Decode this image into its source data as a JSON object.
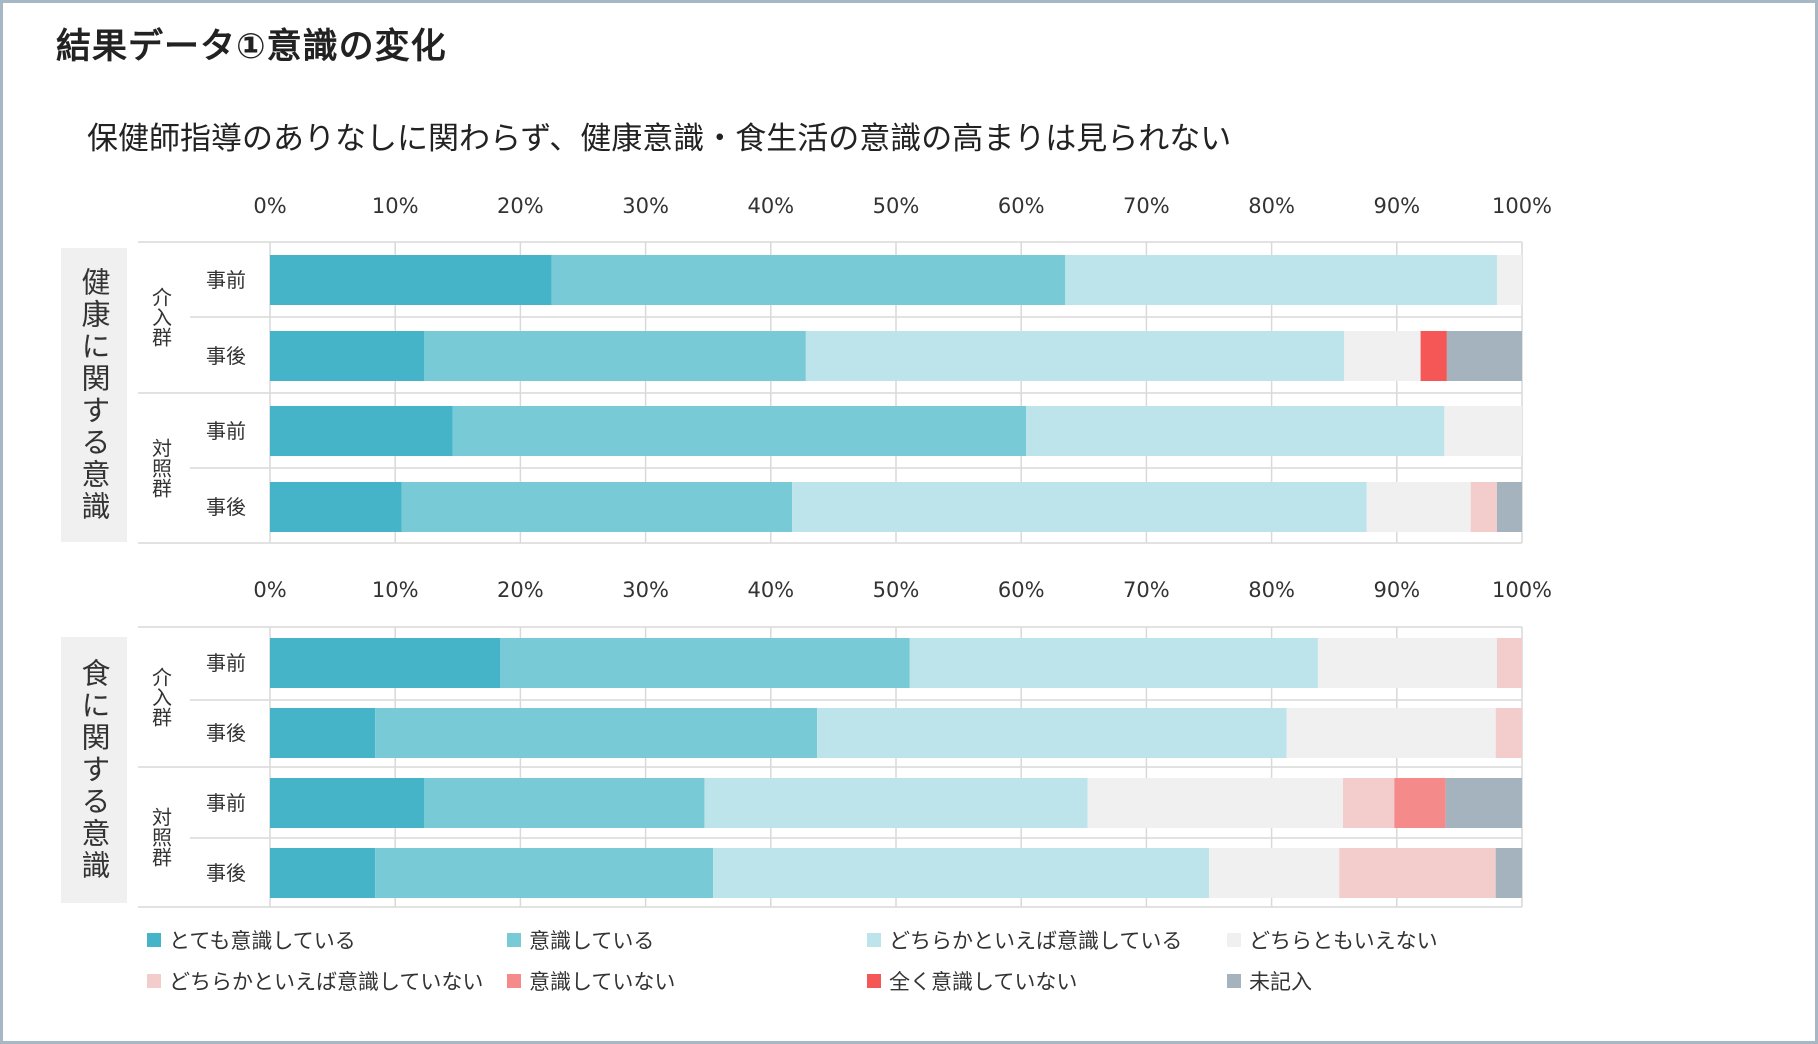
{
  "slide": {
    "title": "結果データ①意識の変化",
    "subtitle": "保健師指導のありなしに関わらず、健康意識・食生活の意識の高まりは見られない"
  },
  "categories_colors": [
    "#45b4c8",
    "#79cad7",
    "#bde4eb",
    "#f0f0f0",
    "#f3cccc",
    "#f58a8a",
    "#f55656",
    "#a4b3be"
  ],
  "chart_data": [
    {
      "type": "bar",
      "orientation": "horizontal-stacked-100",
      "panel_label": "健康に関する意識",
      "x_ticks": [
        "0%",
        "10%",
        "20%",
        "30%",
        "40%",
        "50%",
        "60%",
        "70%",
        "80%",
        "90%",
        "100%"
      ],
      "xlim": [
        0,
        100
      ],
      "groups": [
        {
          "name": "介入群",
          "rows": [
            {
              "label": "事前",
              "values": [
                22.5,
                41,
                34.5,
                2,
                0,
                0,
                0,
                0
              ]
            },
            {
              "label": "事後",
              "values": [
                12.3,
                30.5,
                43,
                6.1,
                0,
                0,
                2.1,
                6
              ]
            }
          ]
        },
        {
          "name": "対照群",
          "rows": [
            {
              "label": "事前",
              "values": [
                14.6,
                45.8,
                33.4,
                6.2,
                0,
                0,
                0,
                0
              ]
            },
            {
              "label": "事後",
              "values": [
                10.5,
                31.2,
                45.9,
                8.3,
                2.1,
                0,
                0,
                2
              ]
            }
          ]
        }
      ]
    },
    {
      "type": "bar",
      "orientation": "horizontal-stacked-100",
      "panel_label": "食に関する意識",
      "x_ticks": [
        "0%",
        "10%",
        "20%",
        "30%",
        "40%",
        "50%",
        "60%",
        "70%",
        "80%",
        "90%",
        "100%"
      ],
      "xlim": [
        0,
        100
      ],
      "groups": [
        {
          "name": "介入群",
          "rows": [
            {
              "label": "事前",
              "values": [
                18.4,
                32.7,
                32.6,
                14.3,
                2,
                0,
                0,
                0
              ]
            },
            {
              "label": "事後",
              "values": [
                8.4,
                35.3,
                37.5,
                16.7,
                2.1,
                0,
                0,
                0
              ]
            }
          ]
        },
        {
          "name": "対照群",
          "rows": [
            {
              "label": "事前",
              "values": [
                12.3,
                22.4,
                30.6,
                20.4,
                4.1,
                4.1,
                0,
                6.1
              ]
            },
            {
              "label": "事後",
              "values": [
                8.4,
                27,
                39.6,
                10.4,
                12.5,
                0,
                0,
                2.1
              ]
            }
          ]
        }
      ]
    }
  ],
  "legend": [
    {
      "label": "とても意識している",
      "color": "#45b4c8"
    },
    {
      "label": "意識している",
      "color": "#79cad7"
    },
    {
      "label": "どちらかといえば意識している",
      "color": "#bde4eb"
    },
    {
      "label": "どちらともいえない",
      "color": "#f0f0f0"
    },
    {
      "label": "どちらかといえば意識していない",
      "color": "#f3cccc"
    },
    {
      "label": "意識していない",
      "color": "#f58a8a"
    },
    {
      "label": "全く意識していない",
      "color": "#f55656"
    },
    {
      "label": "未記入",
      "color": "#a4b3be"
    }
  ]
}
